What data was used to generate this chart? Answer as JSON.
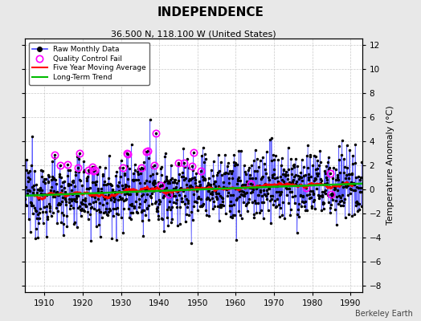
{
  "title": "INDEPENDENCE",
  "subtitle": "36.500 N, 118.100 W (United States)",
  "ylabel": "Temperature Anomaly (°C)",
  "credit": "Berkeley Earth",
  "xlim": [
    1905,
    1993
  ],
  "ylim": [
    -8.5,
    12.5
  ],
  "yticks": [
    -8,
    -6,
    -4,
    -2,
    0,
    2,
    4,
    6,
    8,
    10,
    12
  ],
  "xticks": [
    1910,
    1920,
    1930,
    1940,
    1950,
    1960,
    1970,
    1980,
    1990
  ],
  "background_color": "#e8e8e8",
  "plot_bg_color": "#ffffff",
  "raw_line_color": "#4444ff",
  "dot_color": "#000000",
  "ma_color": "#ff0000",
  "trend_color": "#00bb00",
  "qc_color": "#ff00ff",
  "seed": 12345
}
